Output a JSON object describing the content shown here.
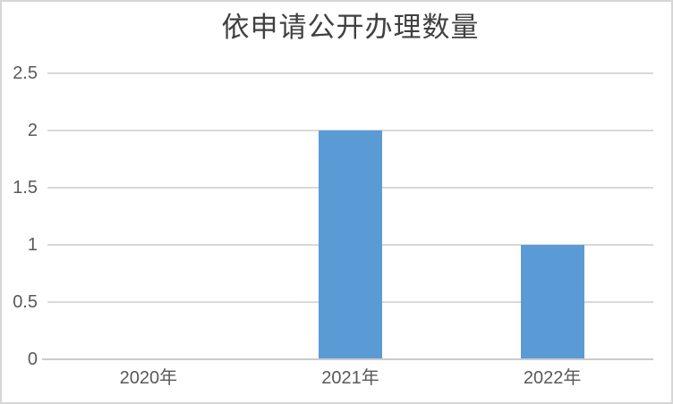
{
  "chart_data": {
    "type": "bar",
    "title": "依申请公开办理数量",
    "categories": [
      "2020年",
      "2021年",
      "2022年"
    ],
    "values": [
      0,
      2,
      1
    ],
    "xlabel": "",
    "ylabel": "",
    "ylim": [
      0,
      2.5
    ],
    "yticks": [
      0,
      0.5,
      1,
      1.5,
      2,
      2.5
    ],
    "ytick_labels": [
      "0",
      "0.5",
      "1",
      "1.5",
      "2",
      "2.5"
    ],
    "grid": true,
    "legend": "none",
    "bar_color": "#5b9bd5",
    "gridline_color": "#d9d9d9",
    "axis_line_color": "#cbcbcb",
    "label_color": "#595959",
    "title_color": "#404040",
    "frame_color": "#d6d6d6",
    "background_color": "#ffffff"
  }
}
